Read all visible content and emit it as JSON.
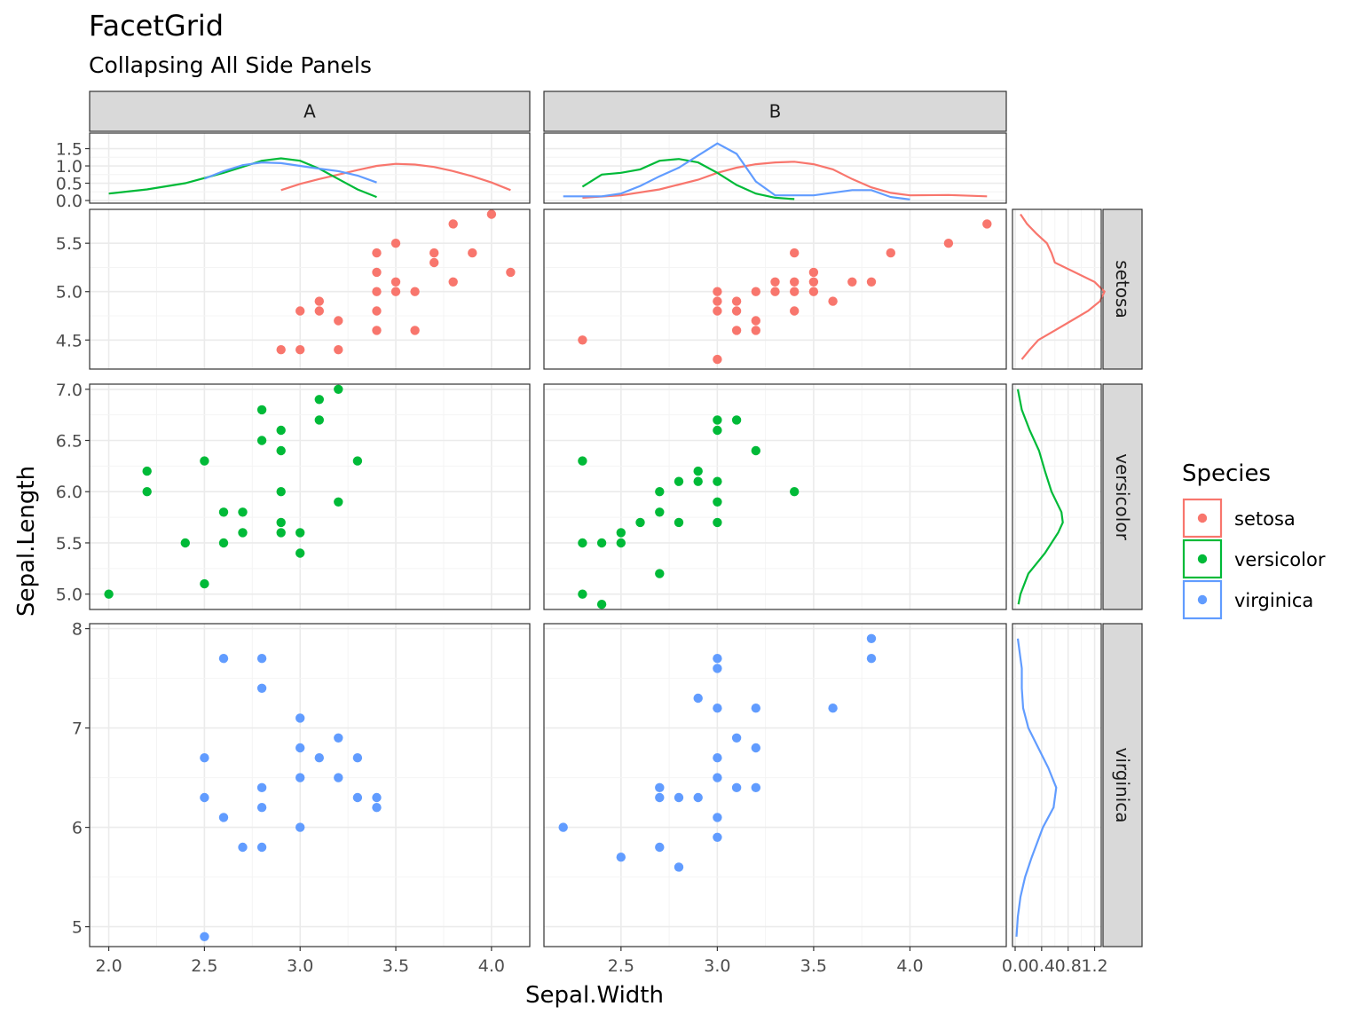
{
  "chart_data": {
    "type": "scatter",
    "title": "FacetGrid",
    "subtitle": "Collapsing All Side Panels",
    "xlabel": "Sepal.Width",
    "ylabel": "Sepal.Length",
    "columns": [
      "A",
      "B"
    ],
    "rows": [
      "setosa",
      "versicolor",
      "virginica"
    ],
    "colors": {
      "setosa": "#F8766D",
      "versicolor": "#00BA38",
      "virginica": "#619CFF"
    },
    "xlim": {
      "A": [
        1.9,
        4.2
      ],
      "B": [
        2.1,
        4.5
      ]
    },
    "xticks": {
      "A": [
        "2.0",
        "2.5",
        "3.0",
        "3.5",
        "4.0"
      ],
      "B": [
        "2.5",
        "3.0",
        "3.5",
        "4.0"
      ]
    },
    "x_tick_values": {
      "A": [
        2.0,
        2.5,
        3.0,
        3.5,
        4.0
      ],
      "B": [
        2.5,
        3.0,
        3.5,
        4.0
      ]
    },
    "ylim": {
      "setosa": [
        4.2,
        5.85
      ],
      "versicolor": [
        4.85,
        7.05
      ],
      "virginica": [
        4.8,
        8.05
      ]
    },
    "yticks": {
      "setosa": [
        "4.5",
        "5.0",
        "5.5"
      ],
      "versicolor": [
        "5.0",
        "5.5",
        "6.0",
        "6.5",
        "7.0"
      ],
      "virginica": [
        "5",
        "6",
        "7",
        "8"
      ]
    },
    "y_tick_values": {
      "setosa": [
        4.5,
        5.0,
        5.5
      ],
      "versicolor": [
        5.0,
        5.5,
        6.0,
        6.5,
        7.0
      ],
      "virginica": [
        5,
        6,
        7,
        8
      ]
    },
    "top_density": {
      "ylim": [
        0,
        1.95
      ],
      "yticks": [
        "0.0",
        "0.5",
        "1.0",
        "1.5"
      ],
      "y_tick_values": [
        0,
        0.5,
        1.0,
        1.5
      ],
      "A": {
        "setosa": {
          "x": [
            2.9,
            3.0,
            3.1,
            3.2,
            3.3,
            3.4,
            3.5,
            3.6,
            3.7,
            3.8,
            3.9,
            4.0,
            4.1
          ],
          "y": [
            0.3,
            0.48,
            0.62,
            0.75,
            0.88,
            1.0,
            1.06,
            1.04,
            0.97,
            0.85,
            0.7,
            0.52,
            0.3
          ]
        },
        "versicolor": {
          "x": [
            2.0,
            2.2,
            2.4,
            2.6,
            2.8,
            2.9,
            3.0,
            3.1,
            3.2,
            3.3,
            3.4
          ],
          "y": [
            0.2,
            0.32,
            0.5,
            0.8,
            1.15,
            1.22,
            1.15,
            0.92,
            0.62,
            0.32,
            0.1
          ]
        },
        "virginica": {
          "x": [
            2.5,
            2.6,
            2.7,
            2.8,
            2.9,
            3.0,
            3.1,
            3.2,
            3.3,
            3.4
          ],
          "y": [
            0.63,
            0.85,
            1.02,
            1.1,
            1.08,
            1.0,
            0.92,
            0.85,
            0.72,
            0.52
          ]
        }
      },
      "B": {
        "setosa": {
          "x": [
            2.3,
            2.5,
            2.7,
            2.9,
            3.0,
            3.1,
            3.2,
            3.3,
            3.4,
            3.5,
            3.6,
            3.7,
            3.8,
            3.9,
            4.0,
            4.2,
            4.4
          ],
          "y": [
            0.08,
            0.15,
            0.32,
            0.6,
            0.8,
            0.95,
            1.05,
            1.1,
            1.12,
            1.05,
            0.9,
            0.62,
            0.38,
            0.22,
            0.15,
            0.16,
            0.12
          ]
        },
        "versicolor": {
          "x": [
            2.3,
            2.4,
            2.5,
            2.6,
            2.7,
            2.8,
            2.9,
            3.0,
            3.1,
            3.2,
            3.3,
            3.4
          ],
          "y": [
            0.4,
            0.75,
            0.8,
            0.9,
            1.15,
            1.2,
            1.1,
            0.8,
            0.45,
            0.2,
            0.08,
            0.04
          ]
        },
        "virginica": {
          "x": [
            2.2,
            2.4,
            2.5,
            2.6,
            2.7,
            2.8,
            2.9,
            3.0,
            3.1,
            3.2,
            3.3,
            3.5,
            3.7,
            3.8,
            3.9,
            4.0
          ],
          "y": [
            0.12,
            0.12,
            0.2,
            0.42,
            0.7,
            0.95,
            1.3,
            1.65,
            1.35,
            0.55,
            0.15,
            0.15,
            0.3,
            0.3,
            0.1,
            0.03
          ]
        }
      }
    },
    "side_density": {
      "xlim": [
        0,
        1.3
      ],
      "xticks": [
        "0.0",
        "0.4",
        "0.8",
        "1.2"
      ],
      "x_tick_values": [
        0.0,
        0.4,
        0.8,
        1.2
      ],
      "setosa": {
        "y": [
          4.3,
          4.4,
          4.5,
          4.6,
          4.7,
          4.8,
          4.9,
          5.0,
          5.1,
          5.2,
          5.3,
          5.4,
          5.5,
          5.6,
          5.7,
          5.8
        ],
        "x": [
          0.1,
          0.22,
          0.35,
          0.6,
          0.85,
          1.1,
          1.28,
          1.35,
          1.2,
          0.9,
          0.6,
          0.55,
          0.48,
          0.32,
          0.18,
          0.08
        ]
      },
      "versicolor": {
        "y": [
          4.9,
          5.0,
          5.2,
          5.4,
          5.6,
          5.7,
          5.8,
          6.0,
          6.2,
          6.4,
          6.6,
          6.8,
          7.0
        ],
        "x": [
          0.05,
          0.08,
          0.2,
          0.45,
          0.65,
          0.72,
          0.7,
          0.55,
          0.45,
          0.36,
          0.22,
          0.1,
          0.04
        ]
      },
      "virginica": {
        "y": [
          4.9,
          5.1,
          5.3,
          5.5,
          5.7,
          6.0,
          6.2,
          6.4,
          6.6,
          6.8,
          7.0,
          7.2,
          7.4,
          7.6,
          7.8,
          7.9
        ],
        "x": [
          0.02,
          0.04,
          0.08,
          0.15,
          0.25,
          0.42,
          0.58,
          0.62,
          0.5,
          0.35,
          0.2,
          0.12,
          0.1,
          0.1,
          0.06,
          0.04
        ]
      }
    },
    "points": {
      "A": {
        "setosa": [
          [
            4.0,
            5.8
          ],
          [
            3.8,
            5.7
          ],
          [
            4.1,
            5.2
          ],
          [
            3.9,
            5.4
          ],
          [
            3.5,
            5.5
          ],
          [
            3.7,
            5.4
          ],
          [
            3.4,
            5.4
          ],
          [
            3.7,
            5.3
          ],
          [
            3.4,
            5.2
          ],
          [
            3.8,
            5.1
          ],
          [
            3.5,
            5.1
          ],
          [
            3.4,
            5.0
          ],
          [
            3.5,
            5.0
          ],
          [
            3.6,
            5.0
          ],
          [
            3.1,
            4.9
          ],
          [
            3.0,
            4.8
          ],
          [
            3.1,
            4.8
          ],
          [
            3.4,
            4.8
          ],
          [
            3.2,
            4.7
          ],
          [
            3.4,
            4.6
          ],
          [
            3.6,
            4.6
          ],
          [
            2.9,
            4.4
          ],
          [
            3.0,
            4.4
          ],
          [
            3.2,
            4.4
          ]
        ],
        "versicolor": [
          [
            3.2,
            7.0
          ],
          [
            3.1,
            6.9
          ],
          [
            2.8,
            6.8
          ],
          [
            3.1,
            6.7
          ],
          [
            2.9,
            6.6
          ],
          [
            2.8,
            6.5
          ],
          [
            2.9,
            6.4
          ],
          [
            2.5,
            6.3
          ],
          [
            3.3,
            6.3
          ],
          [
            2.2,
            6.2
          ],
          [
            2.2,
            6.0
          ],
          [
            2.9,
            6.0
          ],
          [
            3.2,
            5.9
          ],
          [
            2.6,
            5.8
          ],
          [
            2.7,
            5.8
          ],
          [
            2.9,
            5.7
          ],
          [
            2.7,
            5.6
          ],
          [
            2.9,
            5.6
          ],
          [
            3.0,
            5.6
          ],
          [
            2.4,
            5.5
          ],
          [
            2.6,
            5.5
          ],
          [
            3.0,
            5.4
          ],
          [
            2.5,
            5.1
          ],
          [
            2.0,
            5.0
          ]
        ],
        "virginica": [
          [
            2.6,
            7.7
          ],
          [
            2.8,
            7.7
          ],
          [
            2.8,
            7.4
          ],
          [
            3.0,
            7.1
          ],
          [
            3.2,
            6.9
          ],
          [
            3.0,
            6.8
          ],
          [
            3.1,
            6.7
          ],
          [
            3.3,
            6.7
          ],
          [
            2.5,
            6.7
          ],
          [
            3.0,
            6.5
          ],
          [
            3.2,
            6.5
          ],
          [
            2.8,
            6.4
          ],
          [
            2.5,
            6.3
          ],
          [
            3.3,
            6.3
          ],
          [
            3.4,
            6.3
          ],
          [
            2.8,
            6.2
          ],
          [
            3.4,
            6.2
          ],
          [
            2.6,
            6.1
          ],
          [
            3.0,
            6.0
          ],
          [
            2.7,
            5.8
          ],
          [
            2.8,
            5.8
          ],
          [
            2.5,
            4.9
          ]
        ]
      },
      "B": {
        "setosa": [
          [
            4.4,
            5.7
          ],
          [
            4.2,
            5.5
          ],
          [
            3.9,
            5.4
          ],
          [
            3.4,
            5.4
          ],
          [
            3.5,
            5.2
          ],
          [
            3.3,
            5.1
          ],
          [
            3.4,
            5.1
          ],
          [
            3.5,
            5.1
          ],
          [
            3.7,
            5.1
          ],
          [
            3.8,
            5.1
          ],
          [
            3.0,
            5.0
          ],
          [
            3.2,
            5.0
          ],
          [
            3.3,
            5.0
          ],
          [
            3.4,
            5.0
          ],
          [
            3.5,
            5.0
          ],
          [
            3.0,
            4.9
          ],
          [
            3.1,
            4.9
          ],
          [
            3.6,
            4.9
          ],
          [
            3.0,
            4.8
          ],
          [
            3.1,
            4.8
          ],
          [
            3.4,
            4.8
          ],
          [
            3.2,
            4.7
          ],
          [
            3.1,
            4.6
          ],
          [
            3.2,
            4.6
          ],
          [
            2.3,
            4.5
          ],
          [
            3.0,
            4.3
          ]
        ],
        "versicolor": [
          [
            3.0,
            6.7
          ],
          [
            3.1,
            6.7
          ],
          [
            3.0,
            6.6
          ],
          [
            3.2,
            6.4
          ],
          [
            2.3,
            6.3
          ],
          [
            2.9,
            6.2
          ],
          [
            2.8,
            6.1
          ],
          [
            2.9,
            6.1
          ],
          [
            3.0,
            6.1
          ],
          [
            2.7,
            6.0
          ],
          [
            3.4,
            6.0
          ],
          [
            3.0,
            5.9
          ],
          [
            2.7,
            5.8
          ],
          [
            2.6,
            5.7
          ],
          [
            2.8,
            5.7
          ],
          [
            3.0,
            5.7
          ],
          [
            2.5,
            5.6
          ],
          [
            2.3,
            5.5
          ],
          [
            2.4,
            5.5
          ],
          [
            2.5,
            5.5
          ],
          [
            2.7,
            5.2
          ],
          [
            2.3,
            5.0
          ],
          [
            2.4,
            4.9
          ]
        ],
        "virginica": [
          [
            3.8,
            7.9
          ],
          [
            3.8,
            7.7
          ],
          [
            3.0,
            7.7
          ],
          [
            3.0,
            7.6
          ],
          [
            2.9,
            7.3
          ],
          [
            3.0,
            7.2
          ],
          [
            3.2,
            7.2
          ],
          [
            3.6,
            7.2
          ],
          [
            3.1,
            6.9
          ],
          [
            3.2,
            6.8
          ],
          [
            3.0,
            6.7
          ],
          [
            3.0,
            6.5
          ],
          [
            2.7,
            6.4
          ],
          [
            3.1,
            6.4
          ],
          [
            3.2,
            6.4
          ],
          [
            2.7,
            6.3
          ],
          [
            2.8,
            6.3
          ],
          [
            2.9,
            6.3
          ],
          [
            3.0,
            6.1
          ],
          [
            2.2,
            6.0
          ],
          [
            3.0,
            5.9
          ],
          [
            2.7,
            5.8
          ],
          [
            2.5,
            5.7
          ],
          [
            2.8,
            5.6
          ]
        ]
      }
    },
    "legend": {
      "title": "Species",
      "entries": [
        "setosa",
        "versicolor",
        "virginica"
      ],
      "position": "right"
    }
  }
}
